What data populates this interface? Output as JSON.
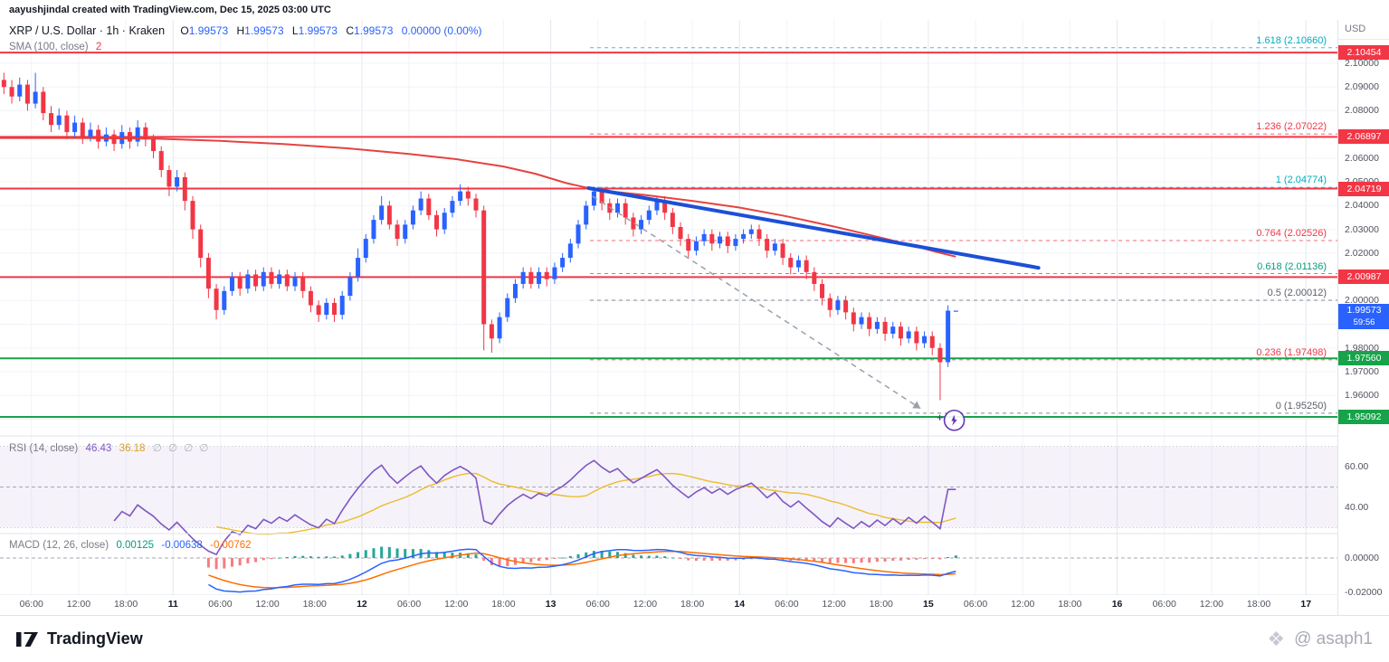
{
  "attribution": "aayushjindal created with TradingView.com, Dec 15, 2025 03:00 UTC",
  "header": {
    "symbol_title": "XRP / U.S. Dollar · 1h · Kraken",
    "ohlc": {
      "o_label": "O",
      "o": "1.99573",
      "h_label": "H",
      "h": "1.99573",
      "l_label": "L",
      "l": "1.99573",
      "c_label": "C",
      "c": "1.99573",
      "change": "0.00000 (0.00%)"
    },
    "sma_label": "SMA (100, close)",
    "sma_value": "2"
  },
  "price_axis": {
    "currency": "USD",
    "badges": [
      {
        "label": "2.10454",
        "price": 2.10454,
        "color": "#f23645"
      },
      {
        "label": "2.06897",
        "price": 2.06897,
        "color": "#f23645"
      },
      {
        "label": "2.04719",
        "price": 2.04719,
        "color": "#f23645"
      },
      {
        "label": "2.00987",
        "price": 2.00987,
        "color": "#f23645"
      },
      {
        "label": "1.99573",
        "price": 1.99573,
        "color": "#2962ff",
        "countdown": "59:56"
      },
      {
        "label": "1.97560",
        "price": 1.9756,
        "color": "#16a34a"
      },
      {
        "label": "1.95092",
        "price": 1.95092,
        "color": "#16a34a"
      }
    ]
  },
  "rsi_pane": {
    "label": "RSI",
    "params": "(14, close)",
    "value": "46.43",
    "ma_value": "36.18",
    "extra": "∅ ∅ ∅ ∅",
    "ticks": [
      {
        "label": "60.00",
        "value": 60
      },
      {
        "label": "40.00",
        "value": 40
      }
    ]
  },
  "macd_pane": {
    "label": "MACD",
    "params": "(12, 26, close)",
    "hist_value": "0.00125",
    "macd_value": "-0.00638",
    "signal_value": "-0.00762",
    "ticks": [
      {
        "label": "0.00000",
        "value": 0
      },
      {
        "label": "-0.02000",
        "value": -0.02
      }
    ]
  },
  "footer": {
    "brand": "TradingView",
    "watermark": "@ asaph1"
  },
  "chart_data": {
    "type": "candlestick",
    "title": "XRP / U.S. Dollar · 1h · Kraken",
    "symbol": "XRP/USD",
    "exchange": "Kraken",
    "interval": "1h",
    "ylim": [
      1.943,
      2.122
    ],
    "hours_visible": 170,
    "up_color": "#2962ff",
    "down_color": "#f23645",
    "grid": true,
    "candles": [
      [
        2.093,
        2.096,
        2.087,
        2.09
      ],
      [
        2.09,
        2.093,
        2.083,
        2.086
      ],
      [
        2.086,
        2.094,
        2.084,
        2.091
      ],
      [
        2.091,
        2.093,
        2.08,
        2.083
      ],
      [
        2.083,
        2.096,
        2.081,
        2.088
      ],
      [
        2.088,
        2.09,
        2.076,
        2.079
      ],
      [
        2.079,
        2.082,
        2.071,
        2.074
      ],
      [
        2.074,
        2.081,
        2.072,
        2.078
      ],
      [
        2.078,
        2.08,
        2.068,
        2.071
      ],
      [
        2.071,
        2.078,
        2.069,
        2.075
      ],
      [
        2.075,
        2.077,
        2.066,
        2.069
      ],
      [
        2.069,
        2.075,
        2.067,
        2.072
      ],
      [
        2.072,
        2.074,
        2.064,
        2.067
      ],
      [
        2.067,
        2.073,
        2.065,
        2.07
      ],
      [
        2.07,
        2.072,
        2.063,
        2.066
      ],
      [
        2.066,
        2.074,
        2.064,
        2.071
      ],
      [
        2.071,
        2.073,
        2.064,
        2.067
      ],
      [
        2.067,
        2.076,
        2.065,
        2.073
      ],
      [
        2.073,
        2.075,
        2.065,
        2.068
      ],
      [
        2.068,
        2.07,
        2.06,
        2.063
      ],
      [
        2.063,
        2.065,
        2.052,
        2.055
      ],
      [
        2.055,
        2.057,
        2.044,
        2.048
      ],
      [
        2.048,
        2.055,
        2.046,
        2.052
      ],
      [
        2.052,
        2.054,
        2.038,
        2.042
      ],
      [
        2.042,
        2.044,
        2.026,
        2.03
      ],
      [
        2.03,
        2.032,
        2.014,
        2.018
      ],
      [
        2.018,
        2.02,
        2.001,
        2.005
      ],
      [
        2.005,
        2.007,
        1.992,
        1.996
      ],
      [
        1.996,
        2.006,
        1.994,
        2.004
      ],
      [
        2.004,
        2.012,
        2.002,
        2.01
      ],
      [
        2.01,
        2.012,
        2.002,
        2.005
      ],
      [
        2.005,
        2.013,
        2.003,
        2.011
      ],
      [
        2.011,
        2.013,
        2.004,
        2.006
      ],
      [
        2.006,
        2.014,
        2.004,
        2.012
      ],
      [
        2.012,
        2.014,
        2.005,
        2.007
      ],
      [
        2.007,
        2.013,
        2.005,
        2.011
      ],
      [
        2.011,
        2.013,
        2.004,
        2.006
      ],
      [
        2.006,
        2.012,
        2.004,
        2.01
      ],
      [
        2.01,
        2.012,
        2.001,
        2.004
      ],
      [
        2.004,
        2.006,
        1.995,
        1.998
      ],
      [
        1.998,
        2.0,
        1.991,
        1.994
      ],
      [
        1.994,
        2.001,
        1.992,
        1.999
      ],
      [
        1.999,
        2.001,
        1.991,
        1.994
      ],
      [
        1.994,
        2.004,
        1.992,
        2.002
      ],
      [
        2.002,
        2.012,
        2.0,
        2.01
      ],
      [
        2.01,
        2.022,
        2.008,
        2.018
      ],
      [
        2.018,
        2.028,
        2.016,
        2.026
      ],
      [
        2.026,
        2.036,
        2.024,
        2.034
      ],
      [
        2.034,
        2.044,
        2.032,
        2.04
      ],
      [
        2.04,
        2.042,
        2.03,
        2.032
      ],
      [
        2.032,
        2.034,
        2.023,
        2.026
      ],
      [
        2.026,
        2.034,
        2.024,
        2.032
      ],
      [
        2.032,
        2.04,
        2.03,
        2.038
      ],
      [
        2.038,
        2.046,
        2.036,
        2.043
      ],
      [
        2.043,
        2.045,
        2.034,
        2.036
      ],
      [
        2.036,
        2.038,
        2.027,
        2.03
      ],
      [
        2.03,
        2.039,
        2.028,
        2.037
      ],
      [
        2.037,
        2.044,
        2.035,
        2.042
      ],
      [
        2.042,
        2.049,
        2.04,
        2.046
      ],
      [
        2.046,
        2.048,
        2.04,
        2.043
      ],
      [
        2.043,
        2.045,
        2.035,
        2.038
      ],
      [
        2.038,
        2.04,
        1.979,
        1.99
      ],
      [
        1.99,
        1.992,
        1.978,
        1.984
      ],
      [
        1.984,
        1.995,
        1.982,
        1.993
      ],
      [
        1.993,
        2.003,
        1.991,
        2.001
      ],
      [
        2.001,
        2.009,
        1.999,
        2.007
      ],
      [
        2.007,
        2.014,
        2.005,
        2.012
      ],
      [
        2.012,
        2.014,
        2.005,
        2.007
      ],
      [
        2.007,
        2.014,
        2.005,
        2.012
      ],
      [
        2.012,
        2.014,
        2.006,
        2.009
      ],
      [
        2.009,
        2.016,
        2.007,
        2.014
      ],
      [
        2.014,
        2.02,
        2.012,
        2.018
      ],
      [
        2.018,
        2.026,
        2.016,
        2.024
      ],
      [
        2.024,
        2.034,
        2.022,
        2.032
      ],
      [
        2.032,
        2.042,
        2.03,
        2.04
      ],
      [
        2.04,
        2.048,
        2.038,
        2.046
      ],
      [
        2.046,
        2.048,
        2.038,
        2.041
      ],
      [
        2.041,
        2.043,
        2.034,
        2.037
      ],
      [
        2.037,
        2.043,
        2.035,
        2.041
      ],
      [
        2.041,
        2.043,
        2.032,
        2.035
      ],
      [
        2.035,
        2.037,
        2.027,
        2.03
      ],
      [
        2.03,
        2.036,
        2.028,
        2.034
      ],
      [
        2.034,
        2.04,
        2.032,
        2.038
      ],
      [
        2.038,
        2.044,
        2.036,
        2.042
      ],
      [
        2.042,
        2.044,
        2.034,
        2.037
      ],
      [
        2.037,
        2.039,
        2.028,
        2.031
      ],
      [
        2.031,
        2.033,
        2.023,
        2.026
      ],
      [
        2.026,
        2.028,
        2.018,
        2.021
      ],
      [
        2.021,
        2.027,
        2.019,
        2.025
      ],
      [
        2.025,
        2.03,
        2.023,
        2.028
      ],
      [
        2.028,
        2.03,
        2.021,
        2.024
      ],
      [
        2.024,
        2.029,
        2.022,
        2.027
      ],
      [
        2.027,
        2.029,
        2.02,
        2.023
      ],
      [
        2.023,
        2.028,
        2.021,
        2.026
      ],
      [
        2.026,
        2.03,
        2.024,
        2.028
      ],
      [
        2.028,
        2.032,
        2.026,
        2.03
      ],
      [
        2.03,
        2.032,
        2.023,
        2.026
      ],
      [
        2.026,
        2.028,
        2.018,
        2.021
      ],
      [
        2.021,
        2.026,
        2.019,
        2.024
      ],
      [
        2.024,
        2.026,
        2.015,
        2.018
      ],
      [
        2.018,
        2.02,
        2.011,
        2.014
      ],
      [
        2.014,
        2.019,
        2.012,
        2.017
      ],
      [
        2.017,
        2.019,
        2.009,
        2.012
      ],
      [
        2.012,
        2.014,
        2.004,
        2.007
      ],
      [
        2.007,
        2.009,
        1.998,
        2.001
      ],
      [
        2.001,
        2.003,
        1.993,
        1.996
      ],
      [
        1.996,
        2.002,
        1.994,
        2.0
      ],
      [
        2.0,
        2.002,
        1.992,
        1.995
      ],
      [
        1.995,
        1.997,
        1.987,
        1.99
      ],
      [
        1.99,
        1.995,
        1.988,
        1.993
      ],
      [
        1.993,
        1.995,
        1.985,
        1.988
      ],
      [
        1.988,
        1.993,
        1.986,
        1.991
      ],
      [
        1.991,
        1.993,
        1.983,
        1.986
      ],
      [
        1.986,
        1.991,
        1.984,
        1.989
      ],
      [
        1.989,
        1.991,
        1.981,
        1.984
      ],
      [
        1.984,
        1.989,
        1.982,
        1.987
      ],
      [
        1.987,
        1.989,
        1.979,
        1.982
      ],
      [
        1.982,
        1.987,
        1.98,
        1.985
      ],
      [
        1.985,
        1.987,
        1.977,
        1.98
      ],
      [
        1.98,
        1.982,
        1.958,
        1.974
      ],
      [
        1.974,
        1.998,
        1.972,
        1.99573
      ],
      [
        1.99573,
        1.99573,
        1.99573,
        1.99573
      ]
    ],
    "x_ticks": [
      {
        "text": "06:00",
        "hour": 4
      },
      {
        "text": "12:00",
        "hour": 10
      },
      {
        "text": "18:00",
        "hour": 16
      },
      {
        "text": "11",
        "hour": 22,
        "major": true
      },
      {
        "text": "06:00",
        "hour": 28
      },
      {
        "text": "12:00",
        "hour": 34
      },
      {
        "text": "18:00",
        "hour": 40
      },
      {
        "text": "12",
        "hour": 46,
        "major": true
      },
      {
        "text": "06:00",
        "hour": 52
      },
      {
        "text": "12:00",
        "hour": 58
      },
      {
        "text": "18:00",
        "hour": 64
      },
      {
        "text": "13",
        "hour": 70,
        "major": true
      },
      {
        "text": "06:00",
        "hour": 76
      },
      {
        "text": "12:00",
        "hour": 82
      },
      {
        "text": "18:00",
        "hour": 88
      },
      {
        "text": "14",
        "hour": 94,
        "major": true
      },
      {
        "text": "06:00",
        "hour": 100
      },
      {
        "text": "12:00",
        "hour": 106
      },
      {
        "text": "18:00",
        "hour": 112
      },
      {
        "text": "15",
        "hour": 118,
        "major": true
      },
      {
        "text": "06:00",
        "hour": 124
      },
      {
        "text": "12:00",
        "hour": 130
      },
      {
        "text": "18:00",
        "hour": 136
      },
      {
        "text": "16",
        "hour": 142,
        "major": true
      },
      {
        "text": "06:00",
        "hour": 148
      },
      {
        "text": "12:00",
        "hour": 154
      },
      {
        "text": "18:00",
        "hour": 160
      },
      {
        "text": "17",
        "hour": 166,
        "major": true
      }
    ],
    "y_ticks": [
      "2.10000",
      "2.09000",
      "2.08000",
      "2.07000",
      "2.06000",
      "2.05000",
      "2.04000",
      "2.03000",
      "2.02000",
      "2.01000",
      "2.00000",
      "1.99000",
      "1.98000",
      "1.97000",
      "1.96000",
      "1.95000"
    ],
    "support_resistance": [
      {
        "price": 2.10454,
        "color": "#f23645"
      },
      {
        "price": 2.06897,
        "color": "#f23645"
      },
      {
        "price": 2.04719,
        "color": "#f23645"
      },
      {
        "price": 2.00987,
        "color": "#f23645"
      },
      {
        "price": 1.9756,
        "color": "#16a34a"
      },
      {
        "price": 1.95092,
        "color": "#16a34a"
      }
    ],
    "fib_levels": [
      {
        "label": "1.618 (2.10660)",
        "ratio": 1.618,
        "price": 2.1066,
        "color": "#00acc1"
      },
      {
        "label": "1.236 (2.07022)",
        "ratio": 1.236,
        "price": 2.07022,
        "color": "#f23645"
      },
      {
        "label": "1 (2.04774)",
        "ratio": 1.0,
        "price": 2.04774,
        "color": "#00acc1"
      },
      {
        "label": "0.764 (2.02526)",
        "ratio": 0.764,
        "price": 2.02526,
        "color": "#f23645"
      },
      {
        "label": "0.618 (2.01136)",
        "ratio": 0.618,
        "price": 2.01136,
        "color": "#089981"
      },
      {
        "label": "0.5 (2.00012)",
        "ratio": 0.5,
        "price": 2.00012,
        "color": "#5d606b"
      },
      {
        "label": "0.236 (1.97498)",
        "ratio": 0.236,
        "price": 1.97498,
        "color": "#f23645"
      },
      {
        "label": "0 (1.95250)",
        "ratio": 0.0,
        "price": 1.9525,
        "color": "#5d606b"
      }
    ],
    "fib_start_hour": 75,
    "sma100": {
      "color": "#e53935",
      "points": [
        [
          0,
          2.0685
        ],
        [
          10,
          2.0685
        ],
        [
          20,
          2.0682
        ],
        [
          28,
          2.0673
        ],
        [
          36,
          2.066
        ],
        [
          44,
          2.0642
        ],
        [
          52,
          2.0618
        ],
        [
          58,
          2.0596
        ],
        [
          64,
          2.0565
        ],
        [
          68,
          2.0535
        ],
        [
          72,
          2.0495
        ],
        [
          76,
          2.0465
        ],
        [
          82,
          2.0445
        ],
        [
          88,
          2.042
        ],
        [
          94,
          2.0392
        ],
        [
          100,
          2.0355
        ],
        [
          106,
          2.0312
        ],
        [
          112,
          2.0265
        ],
        [
          116,
          2.0232
        ],
        [
          119,
          2.0205
        ],
        [
          121.5,
          2.0185
        ]
      ]
    },
    "trendline": {
      "color": "#1d4fd7",
      "width": 4,
      "from": [
        74.8,
        2.0474
      ],
      "to": [
        132,
        2.0138
      ]
    },
    "projection_dashed": {
      "color": "#9aa0aa",
      "from": [
        75.3,
        2.044
      ],
      "to": [
        117,
        1.9545
      ]
    },
    "marker": {
      "type": "lightning-circle",
      "color": "#6433b8",
      "hour": 121.3,
      "price": 1.9495
    },
    "rsi": {
      "period": 14,
      "value": 46.43,
      "ma_value": 36.18,
      "band": [
        30,
        70
      ],
      "color": "#7e57c2",
      "ma_color": "#eab308",
      "band_fill": "#7e57c2"
    },
    "macd": {
      "fast": 12,
      "slow": 26,
      "signal_period": 9,
      "histogram": 0.00125,
      "macd": -0.00638,
      "signal": -0.00762,
      "macd_color": "#2962ff",
      "signal_color": "#ff6d00",
      "hist_pos_color": "#26a69a",
      "hist_neg_color": "#f77c80"
    }
  }
}
